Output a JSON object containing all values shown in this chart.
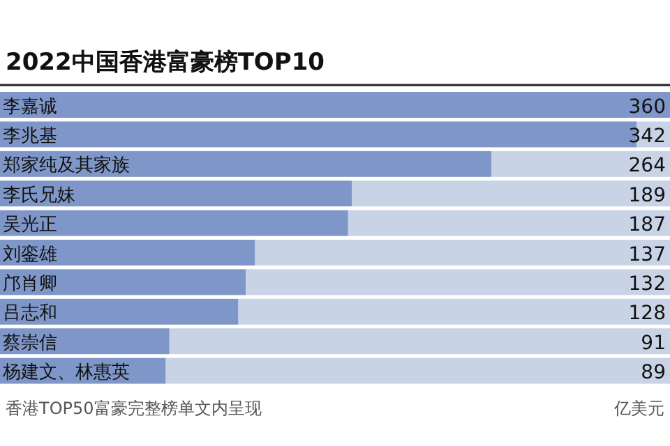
{
  "chart_data": {
    "type": "bar",
    "orientation": "horizontal",
    "title": "2022中国香港富豪榜TOP10",
    "categories": [
      "李嘉诚",
      "李兆基",
      "郑家纯及其家族",
      "李氏兄妹",
      "吴光正",
      "刘銮雄",
      "邝肖卿",
      "吕志和",
      "蔡崇信",
      "杨建文、林惠英"
    ],
    "values": [
      360,
      342,
      264,
      189,
      187,
      137,
      132,
      128,
      91,
      89
    ],
    "color": "#7f97c8",
    "data_labels": true,
    "annotations": [
      "香港TOP50富豪完整榜单文内呈现",
      "亿美元"
    ]
  }
}
